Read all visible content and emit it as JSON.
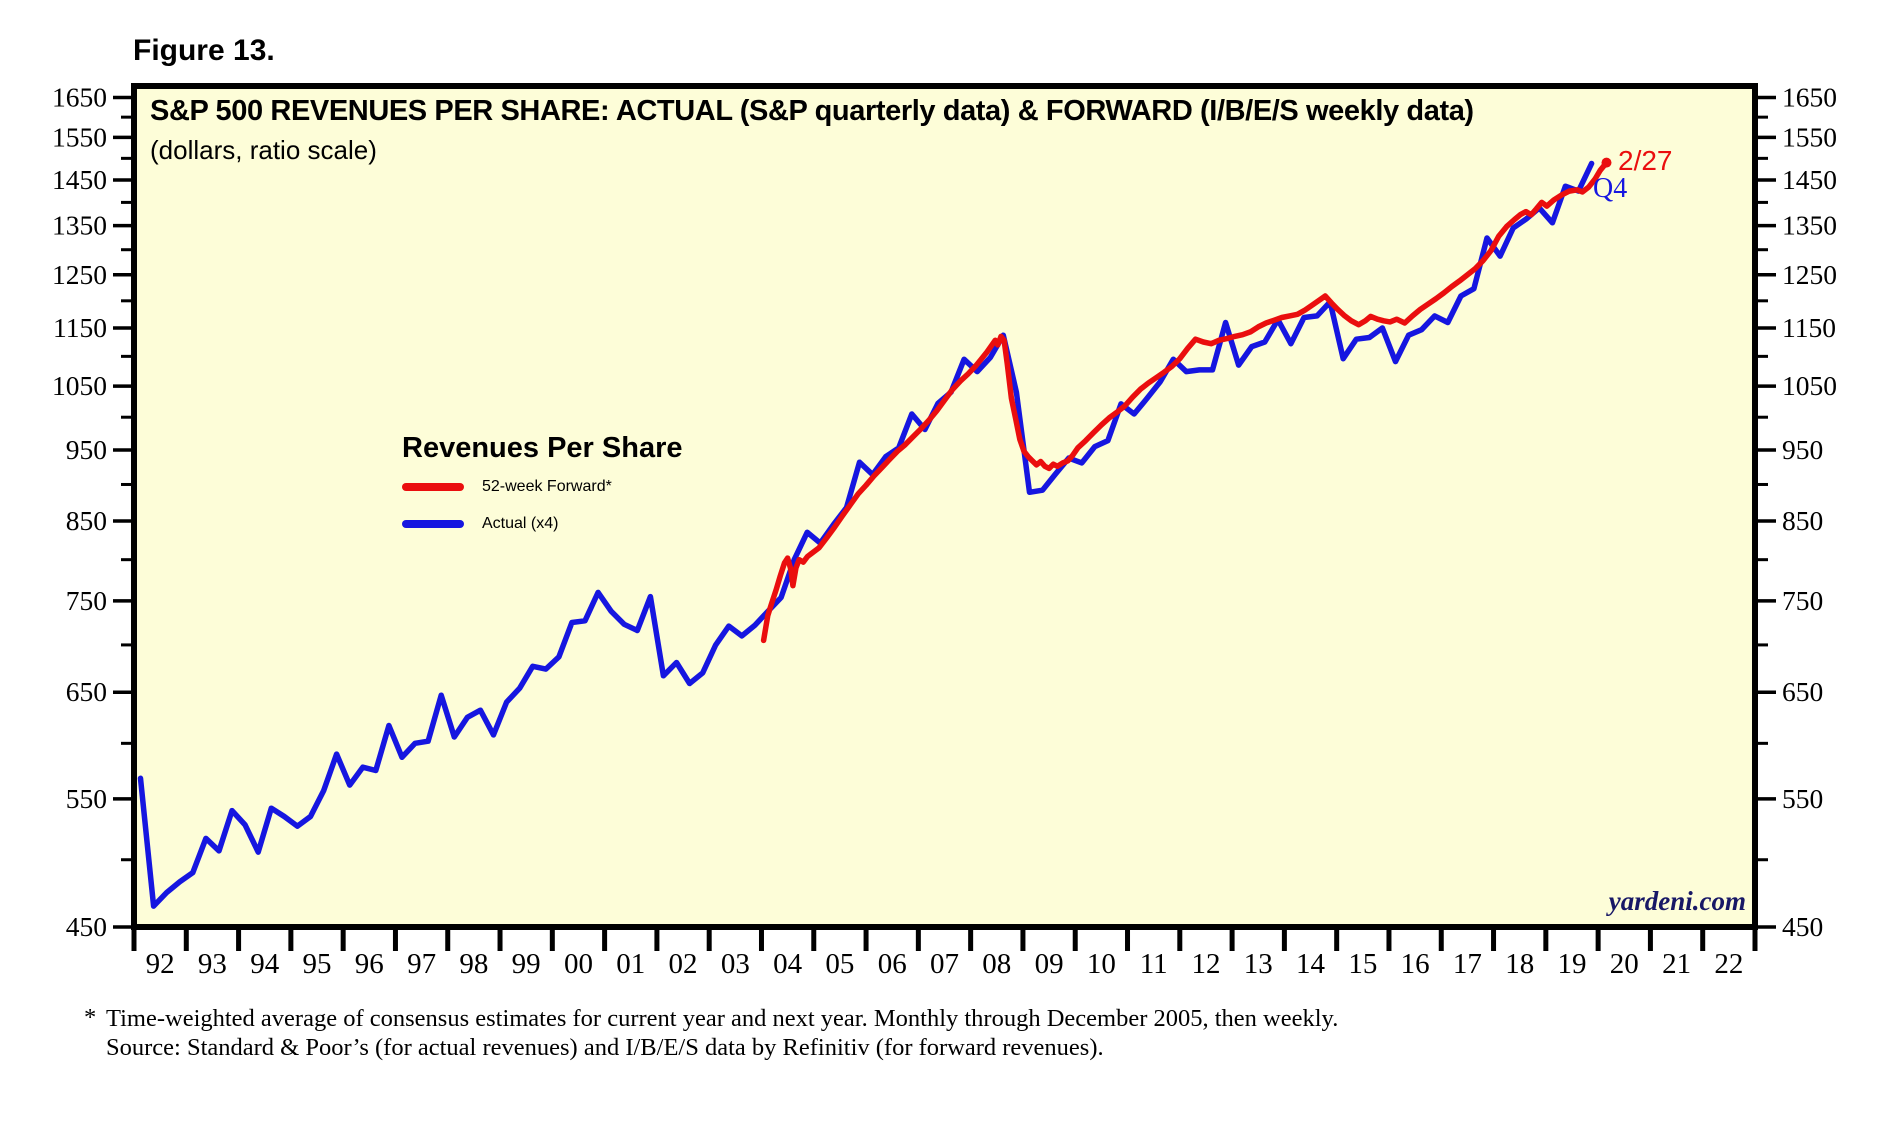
{
  "figure_label": "Figure 13.",
  "watermark": "yardeni.com",
  "colors": {
    "plot_background": "#fdfdd8",
    "forward_red": "#ea0e0e",
    "actual_blue": "#1616e0",
    "watermark_navy": "#181866",
    "axis_black": "#000000"
  },
  "legend": {
    "title": "Revenues Per Share",
    "items": [
      {
        "label": "52-week Forward*",
        "color": "#ea0e0e"
      },
      {
        "label": "Actual (x4)",
        "color": "#1616e0"
      }
    ]
  },
  "annotations": {
    "forward_end": "2/27",
    "actual_end": "Q4"
  },
  "footnote": {
    "marker": "*",
    "line1": "Time-weighted average of consensus estimates for current year and next year. Monthly through December 2005, then weekly.",
    "line2": "Source: Standard & Poor’s (for actual revenues) and I/B/E/S data by Refinitiv (for forward revenues)."
  },
  "chart_data": {
    "type": "line",
    "title": "S&P 500 REVENUES PER SHARE: ACTUAL (S&P quarterly data) & FORWARD (I/B/E/S weekly data)",
    "subtitle": "(dollars, ratio scale)",
    "y_axis": {
      "scale": "ratio (log)",
      "unit": "dollars",
      "bottom_value": 450,
      "top_value": 1680,
      "major_ticks": [
        450,
        550,
        650,
        750,
        850,
        950,
        1050,
        1150,
        1250,
        1350,
        1450,
        1550,
        1650
      ],
      "minor_ticks": [
        500,
        600,
        700,
        800,
        900,
        1000,
        1100,
        1200,
        1300,
        1400,
        1500,
        1600
      ],
      "labels_on_both_sides": true
    },
    "x_axis": {
      "start_year": 1992,
      "end_year": 2023,
      "labels": [
        "92",
        "93",
        "94",
        "95",
        "96",
        "97",
        "98",
        "99",
        "00",
        "01",
        "02",
        "03",
        "04",
        "05",
        "06",
        "07",
        "08",
        "09",
        "10",
        "11",
        "12",
        "13",
        "14",
        "15",
        "16",
        "17",
        "18",
        "19",
        "20",
        "21",
        "22"
      ]
    },
    "series": [
      {
        "name": "Actual (x4)",
        "color": "#1616e0",
        "frequency": "quarterly",
        "points": [
          [
            1992.125,
            568
          ],
          [
            1992.375,
            465
          ],
          [
            1992.625,
            475
          ],
          [
            1992.875,
            483
          ],
          [
            1993.125,
            490
          ],
          [
            1993.375,
            517
          ],
          [
            1993.625,
            507
          ],
          [
            1993.875,
            540
          ],
          [
            1994.125,
            528
          ],
          [
            1994.375,
            506
          ],
          [
            1994.625,
            542
          ],
          [
            1994.875,
            535
          ],
          [
            1995.125,
            527
          ],
          [
            1995.375,
            535
          ],
          [
            1995.625,
            557
          ],
          [
            1995.875,
            590
          ],
          [
            1996.125,
            562
          ],
          [
            1996.375,
            578
          ],
          [
            1996.625,
            575
          ],
          [
            1996.875,
            617
          ],
          [
            1997.125,
            587
          ],
          [
            1997.375,
            600
          ],
          [
            1997.625,
            602
          ],
          [
            1997.875,
            647
          ],
          [
            1998.125,
            606
          ],
          [
            1998.375,
            625
          ],
          [
            1998.625,
            632
          ],
          [
            1998.875,
            608
          ],
          [
            1999.125,
            640
          ],
          [
            1999.375,
            654
          ],
          [
            1999.625,
            677
          ],
          [
            1999.875,
            674
          ],
          [
            2000.125,
            687
          ],
          [
            2000.375,
            725
          ],
          [
            2000.625,
            727
          ],
          [
            2000.875,
            760
          ],
          [
            2001.125,
            738
          ],
          [
            2001.375,
            723
          ],
          [
            2001.625,
            716
          ],
          [
            2001.875,
            755
          ],
          [
            2002.125,
            667
          ],
          [
            2002.375,
            681
          ],
          [
            2002.625,
            659
          ],
          [
            2002.875,
            670
          ],
          [
            2003.125,
            700
          ],
          [
            2003.375,
            721
          ],
          [
            2003.625,
            710
          ],
          [
            2003.875,
            722
          ],
          [
            2004.125,
            738
          ],
          [
            2004.375,
            754
          ],
          [
            2004.625,
            800
          ],
          [
            2004.875,
            835
          ],
          [
            2005.125,
            821
          ],
          [
            2005.375,
            845
          ],
          [
            2005.625,
            868
          ],
          [
            2005.875,
            932
          ],
          [
            2006.125,
            914
          ],
          [
            2006.375,
            940
          ],
          [
            2006.625,
            953
          ],
          [
            2006.875,
            1005
          ],
          [
            2007.125,
            981
          ],
          [
            2007.375,
            1022
          ],
          [
            2007.625,
            1040
          ],
          [
            2007.875,
            1095
          ],
          [
            2008.125,
            1074
          ],
          [
            2008.375,
            1098
          ],
          [
            2008.625,
            1137
          ],
          [
            2008.875,
            1040
          ],
          [
            2009.125,
            889
          ],
          [
            2009.375,
            892
          ],
          [
            2009.625,
            915
          ],
          [
            2009.875,
            938
          ],
          [
            2010.125,
            931
          ],
          [
            2010.375,
            955
          ],
          [
            2010.625,
            964
          ],
          [
            2010.875,
            1021
          ],
          [
            2011.125,
            1005
          ],
          [
            2011.375,
            1030
          ],
          [
            2011.625,
            1057
          ],
          [
            2011.875,
            1095
          ],
          [
            2012.125,
            1074
          ],
          [
            2012.375,
            1077
          ],
          [
            2012.625,
            1077
          ],
          [
            2012.875,
            1160
          ],
          [
            2013.125,
            1085
          ],
          [
            2013.375,
            1117
          ],
          [
            2013.625,
            1125
          ],
          [
            2013.875,
            1165
          ],
          [
            2014.125,
            1122
          ],
          [
            2014.375,
            1169
          ],
          [
            2014.625,
            1172
          ],
          [
            2014.875,
            1198
          ],
          [
            2015.125,
            1096
          ],
          [
            2015.375,
            1130
          ],
          [
            2015.625,
            1133
          ],
          [
            2015.875,
            1150
          ],
          [
            2016.125,
            1091
          ],
          [
            2016.375,
            1137
          ],
          [
            2016.625,
            1147
          ],
          [
            2016.875,
            1172
          ],
          [
            2017.125,
            1160
          ],
          [
            2017.375,
            1209
          ],
          [
            2017.625,
            1223
          ],
          [
            2017.875,
            1324
          ],
          [
            2018.125,
            1287
          ],
          [
            2018.375,
            1345
          ],
          [
            2018.625,
            1364
          ],
          [
            2018.875,
            1388
          ],
          [
            2019.125,
            1356
          ],
          [
            2019.375,
            1436
          ],
          [
            2019.625,
            1425
          ],
          [
            2019.875,
            1488
          ]
        ]
      },
      {
        "name": "52-week Forward*",
        "color": "#ea0e0e",
        "frequency": "monthly through Dec 2005, then weekly",
        "points": [
          [
            2004.04,
            705
          ],
          [
            2004.12,
            733
          ],
          [
            2004.2,
            748
          ],
          [
            2004.28,
            763
          ],
          [
            2004.36,
            780
          ],
          [
            2004.44,
            796
          ],
          [
            2004.5,
            802
          ],
          [
            2004.56,
            788
          ],
          [
            2004.6,
            768
          ],
          [
            2004.66,
            790
          ],
          [
            2004.72,
            800
          ],
          [
            2004.8,
            797
          ],
          [
            2004.88,
            804
          ],
          [
            2004.96,
            808
          ],
          [
            2005.1,
            815
          ],
          [
            2005.25,
            828
          ],
          [
            2005.4,
            842
          ],
          [
            2005.55,
            857
          ],
          [
            2005.7,
            872
          ],
          [
            2005.85,
            887
          ],
          [
            2006.0,
            899
          ],
          [
            2006.15,
            912
          ],
          [
            2006.3,
            924
          ],
          [
            2006.45,
            936
          ],
          [
            2006.6,
            948
          ],
          [
            2006.75,
            958
          ],
          [
            2006.9,
            970
          ],
          [
            2007.05,
            982
          ],
          [
            2007.2,
            995
          ],
          [
            2007.35,
            1010
          ],
          [
            2007.5,
            1027
          ],
          [
            2007.65,
            1044
          ],
          [
            2007.8,
            1058
          ],
          [
            2007.95,
            1070
          ],
          [
            2008.1,
            1084
          ],
          [
            2008.2,
            1095
          ],
          [
            2008.3,
            1106
          ],
          [
            2008.4,
            1119
          ],
          [
            2008.47,
            1128
          ],
          [
            2008.52,
            1120
          ],
          [
            2008.58,
            1135
          ],
          [
            2008.64,
            1128
          ],
          [
            2008.7,
            1088
          ],
          [
            2008.78,
            1030
          ],
          [
            2008.86,
            998
          ],
          [
            2008.94,
            966
          ],
          [
            2009.02,
            948
          ],
          [
            2009.1,
            940
          ],
          [
            2009.18,
            934
          ],
          [
            2009.26,
            928
          ],
          [
            2009.34,
            933
          ],
          [
            2009.42,
            926
          ],
          [
            2009.5,
            923
          ],
          [
            2009.58,
            929
          ],
          [
            2009.66,
            926
          ],
          [
            2009.76,
            931
          ],
          [
            2009.86,
            934
          ],
          [
            2009.95,
            942
          ],
          [
            2010.05,
            953
          ],
          [
            2010.2,
            964
          ],
          [
            2010.35,
            976
          ],
          [
            2010.5,
            988
          ],
          [
            2010.65,
            999
          ],
          [
            2010.8,
            1008
          ],
          [
            2010.95,
            1018
          ],
          [
            2011.1,
            1032
          ],
          [
            2011.25,
            1045
          ],
          [
            2011.4,
            1055
          ],
          [
            2011.55,
            1064
          ],
          [
            2011.7,
            1073
          ],
          [
            2011.85,
            1083
          ],
          [
            2012.0,
            1096
          ],
          [
            2012.15,
            1114
          ],
          [
            2012.3,
            1130
          ],
          [
            2012.45,
            1125
          ],
          [
            2012.6,
            1122
          ],
          [
            2012.75,
            1128
          ],
          [
            2012.9,
            1131
          ],
          [
            2013.05,
            1135
          ],
          [
            2013.2,
            1138
          ],
          [
            2013.35,
            1143
          ],
          [
            2013.5,
            1152
          ],
          [
            2013.65,
            1159
          ],
          [
            2013.8,
            1164
          ],
          [
            2013.95,
            1169
          ],
          [
            2014.1,
            1172
          ],
          [
            2014.25,
            1175
          ],
          [
            2014.4,
            1183
          ],
          [
            2014.55,
            1193
          ],
          [
            2014.68,
            1202
          ],
          [
            2014.78,
            1209
          ],
          [
            2014.9,
            1196
          ],
          [
            2015.02,
            1184
          ],
          [
            2015.14,
            1173
          ],
          [
            2015.28,
            1163
          ],
          [
            2015.42,
            1156
          ],
          [
            2015.55,
            1163
          ],
          [
            2015.65,
            1171
          ],
          [
            2015.78,
            1166
          ],
          [
            2015.9,
            1163
          ],
          [
            2016.02,
            1161
          ],
          [
            2016.15,
            1166
          ],
          [
            2016.3,
            1159
          ],
          [
            2016.45,
            1172
          ],
          [
            2016.6,
            1184
          ],
          [
            2016.75,
            1194
          ],
          [
            2016.9,
            1204
          ],
          [
            2017.05,
            1215
          ],
          [
            2017.2,
            1227
          ],
          [
            2017.35,
            1238
          ],
          [
            2017.5,
            1250
          ],
          [
            2017.65,
            1262
          ],
          [
            2017.8,
            1278
          ],
          [
            2017.95,
            1298
          ],
          [
            2018.1,
            1328
          ],
          [
            2018.25,
            1348
          ],
          [
            2018.4,
            1363
          ],
          [
            2018.52,
            1374
          ],
          [
            2018.62,
            1380
          ],
          [
            2018.72,
            1373
          ],
          [
            2018.82,
            1386
          ],
          [
            2018.92,
            1400
          ],
          [
            2019.02,
            1392
          ],
          [
            2019.15,
            1405
          ],
          [
            2019.3,
            1416
          ],
          [
            2019.45,
            1425
          ],
          [
            2019.6,
            1428
          ],
          [
            2019.7,
            1423
          ],
          [
            2019.82,
            1434
          ],
          [
            2019.94,
            1452
          ],
          [
            2020.04,
            1472
          ],
          [
            2020.16,
            1490
          ]
        ]
      }
    ]
  }
}
